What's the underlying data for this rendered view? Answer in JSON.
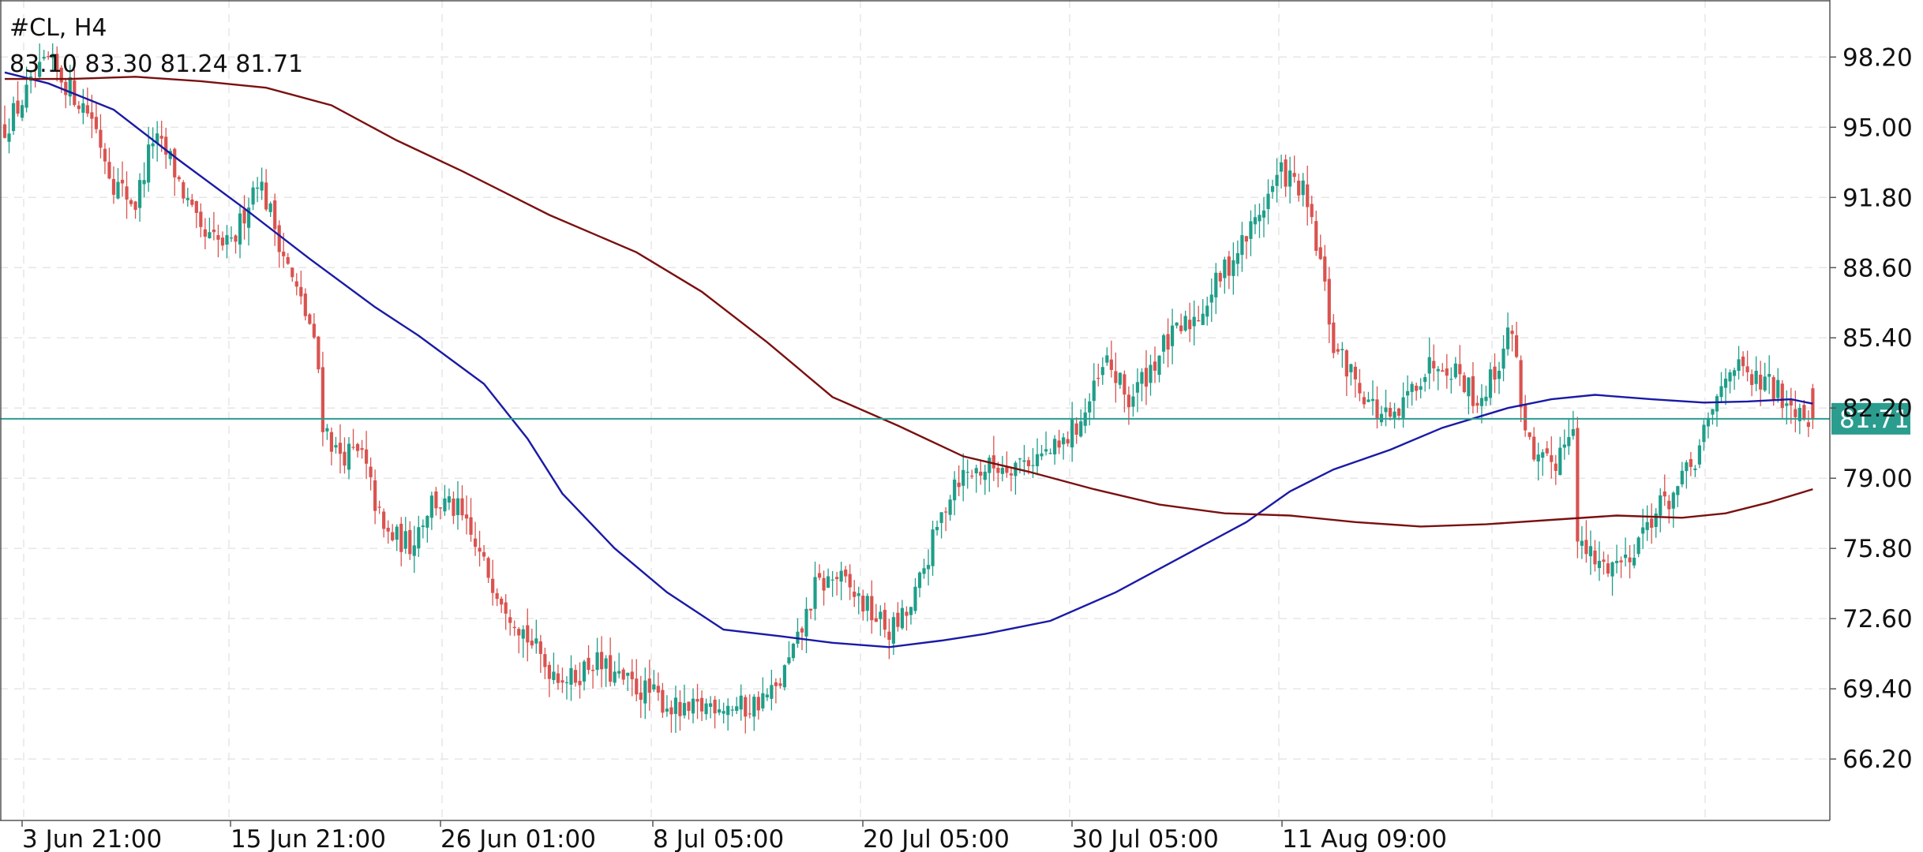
{
  "header": {
    "symbol_timeframe": "#CL, H4",
    "ohlc": "83.10 83.30 81.24 81.71"
  },
  "chart_data": {
    "type": "candlestick",
    "symbol": "#CL",
    "timeframe": "H4",
    "last_open": 83.1,
    "last_high": 83.3,
    "last_low": 81.24,
    "last_close": 81.71,
    "y_ticks": [
      "98.20",
      "95.00",
      "91.80",
      "88.60",
      "85.40",
      "82.20",
      "79.00",
      "75.80",
      "72.60",
      "69.40",
      "66.20"
    ],
    "x_ticks": [
      "3 Jun 21:00",
      "15 Jun 21:00",
      "26 Jun 01:00",
      "8 Jul 05:00",
      "20 Jul 05:00",
      "30 Jul 05:00",
      "11 Aug 09:00"
    ],
    "ylim": [
      63.4,
      100.8
    ],
    "grid": true,
    "current_price": {
      "value": 81.71,
      "label": "81.71"
    },
    "colors": {
      "up": "#1f9e89",
      "down": "#d9534f",
      "ma_fast": "#1a1aa6",
      "ma_slow": "#7a1010",
      "price_line": "#2a9d8f",
      "grid": "#e6e6e6"
    },
    "price_path": [
      [
        0,
        95.0
      ],
      [
        10,
        98.0
      ],
      [
        20,
        95.5
      ],
      [
        25,
        92.5
      ],
      [
        30,
        91.5
      ],
      [
        34,
        94.5
      ],
      [
        38,
        93.5
      ],
      [
        45,
        90.0
      ],
      [
        52,
        89.5
      ],
      [
        58,
        92.8
      ],
      [
        62,
        90.5
      ],
      [
        66,
        88.0
      ],
      [
        70,
        86.0
      ],
      [
        72,
        84.0
      ],
      [
        73,
        81.6
      ],
      [
        76,
        80.2
      ],
      [
        82,
        80.0
      ],
      [
        87,
        76.5
      ],
      [
        93,
        76.0
      ],
      [
        98,
        78.0
      ],
      [
        104,
        77.5
      ],
      [
        110,
        75.0
      ],
      [
        116,
        73.0
      ],
      [
        124,
        70.5
      ],
      [
        130,
        69.8
      ],
      [
        135,
        70.7
      ],
      [
        141,
        69.8
      ],
      [
        148,
        69.2
      ],
      [
        156,
        68.2
      ],
      [
        163,
        68.8
      ],
      [
        170,
        68.5
      ],
      [
        177,
        69.3
      ],
      [
        182,
        71.5
      ],
      [
        186,
        74.0
      ],
      [
        191,
        74.5
      ],
      [
        196,
        73.5
      ],
      [
        203,
        72.0
      ],
      [
        208,
        73.0
      ],
      [
        212,
        75.5
      ],
      [
        218,
        79.0
      ],
      [
        224,
        79.4
      ],
      [
        234,
        79.8
      ],
      [
        242,
        80.3
      ],
      [
        248,
        82.0
      ],
      [
        253,
        84.3
      ],
      [
        258,
        82.5
      ],
      [
        266,
        85.0
      ],
      [
        274,
        86.5
      ],
      [
        280,
        88.5
      ],
      [
        285,
        90.0
      ],
      [
        289,
        91.5
      ],
      [
        293,
        93.0
      ],
      [
        298,
        92.0
      ],
      [
        302,
        88.8
      ],
      [
        305,
        85.0
      ],
      [
        310,
        83.5
      ],
      [
        315,
        82.0
      ],
      [
        319,
        81.5
      ],
      [
        324,
        83.5
      ],
      [
        329,
        84.5
      ],
      [
        334,
        83.8
      ],
      [
        338,
        82.5
      ],
      [
        342,
        83.8
      ],
      [
        346,
        86.0
      ],
      [
        348,
        82.5
      ],
      [
        351,
        79.5
      ],
      [
        356,
        79.8
      ],
      [
        360,
        81.8
      ],
      [
        361,
        76.0
      ],
      [
        366,
        75.0
      ],
      [
        372,
        75.3
      ],
      [
        378,
        77.3
      ],
      [
        384,
        78.5
      ],
      [
        388,
        79.8
      ],
      [
        392,
        82.0
      ],
      [
        396,
        84.3
      ],
      [
        400,
        83.5
      ],
      [
        405,
        83.2
      ],
      [
        410,
        82.5
      ],
      [
        415,
        81.71
      ]
    ],
    "series": [
      {
        "name": "",
        "role": "ma_fast",
        "points": [
          [
            0,
            97.5
          ],
          [
            10,
            97.0
          ],
          [
            25,
            95.8
          ],
          [
            40,
            93.5
          ],
          [
            55,
            91.3
          ],
          [
            70,
            89.0
          ],
          [
            85,
            86.8
          ],
          [
            95,
            85.5
          ],
          [
            110,
            83.3
          ],
          [
            120,
            80.8
          ],
          [
            128,
            78.3
          ],
          [
            140,
            75.8
          ],
          [
            152,
            73.8
          ],
          [
            165,
            72.1
          ],
          [
            178,
            71.8
          ],
          [
            190,
            71.5
          ],
          [
            203,
            71.3
          ],
          [
            215,
            71.6
          ],
          [
            225,
            71.9
          ],
          [
            240,
            72.5
          ],
          [
            255,
            73.8
          ],
          [
            270,
            75.4
          ],
          [
            285,
            77.0
          ],
          [
            295,
            78.4
          ],
          [
            305,
            79.4
          ],
          [
            318,
            80.3
          ],
          [
            330,
            81.3
          ],
          [
            345,
            82.2
          ],
          [
            355,
            82.6
          ],
          [
            365,
            82.8
          ],
          [
            378,
            82.6
          ],
          [
            390,
            82.45
          ],
          [
            400,
            82.5
          ],
          [
            410,
            82.6
          ],
          [
            415,
            82.4
          ]
        ]
      },
      {
        "name": "",
        "role": "ma_slow",
        "points": [
          [
            0,
            97.2
          ],
          [
            15,
            97.2
          ],
          [
            30,
            97.3
          ],
          [
            45,
            97.1
          ],
          [
            60,
            96.8
          ],
          [
            75,
            96.0
          ],
          [
            90,
            94.4
          ],
          [
            105,
            93.0
          ],
          [
            125,
            91.0
          ],
          [
            145,
            89.3
          ],
          [
            160,
            87.5
          ],
          [
            175,
            85.2
          ],
          [
            190,
            82.7
          ],
          [
            205,
            81.4
          ],
          [
            220,
            80.0
          ],
          [
            235,
            79.3
          ],
          [
            250,
            78.5
          ],
          [
            265,
            77.8
          ],
          [
            280,
            77.4
          ],
          [
            295,
            77.3
          ],
          [
            310,
            77.0
          ],
          [
            325,
            76.8
          ],
          [
            340,
            76.9
          ],
          [
            355,
            77.1
          ],
          [
            370,
            77.3
          ],
          [
            385,
            77.2
          ],
          [
            395,
            77.4
          ],
          [
            405,
            77.9
          ],
          [
            415,
            78.5
          ]
        ]
      }
    ]
  }
}
